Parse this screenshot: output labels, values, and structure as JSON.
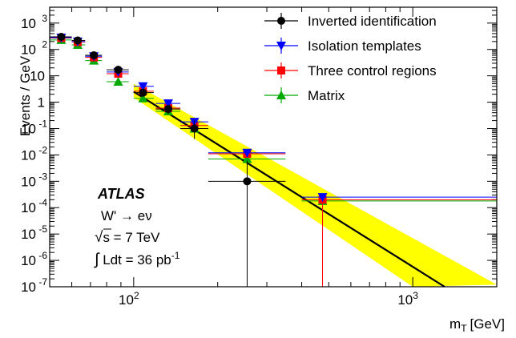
{
  "chart_data": {
    "type": "scatter",
    "xlabel": "m",
    "xlabel_sub": "T",
    "xlabel_unit": "[GeV]",
    "ylabel": "Events / GeV",
    "x_scale": "log",
    "y_scale": "log",
    "xlim": [
      50,
      2000
    ],
    "ylim": [
      1e-07,
      4000
    ],
    "x_ticks": [
      {
        "value": 100,
        "base": "10",
        "exp": "2"
      },
      {
        "value": 1000,
        "base": "10",
        "exp": "3"
      }
    ],
    "y_ticks": [
      {
        "value": 1e-07,
        "base": "10",
        "exp": "-7"
      },
      {
        "value": 1e-06,
        "base": "10",
        "exp": "-6"
      },
      {
        "value": 1e-05,
        "base": "10",
        "exp": "-5"
      },
      {
        "value": 0.0001,
        "base": "10",
        "exp": "-4"
      },
      {
        "value": 0.001,
        "base": "10",
        "exp": "-3"
      },
      {
        "value": 0.01,
        "base": "10",
        "exp": "-2"
      },
      {
        "value": 0.1,
        "base": "10",
        "exp": "-1"
      },
      {
        "value": 1,
        "base": "1",
        "exp": ""
      },
      {
        "value": 10,
        "base": "10",
        "exp": ""
      },
      {
        "value": 100,
        "base": "10",
        "exp": "2"
      },
      {
        "value": 1000,
        "base": "10",
        "exp": "3"
      }
    ],
    "legend_position": "top-right",
    "series": [
      {
        "name": "Inverted identification",
        "color": "#000000",
        "marker": "circle",
        "points": [
          {
            "x": 55,
            "y": 300,
            "x_lo": 50,
            "x_hi": 60,
            "y_lo": 250,
            "y_hi": 360
          },
          {
            "x": 63,
            "y": 220,
            "x_lo": 60,
            "x_hi": 67,
            "y_lo": 190,
            "y_hi": 260
          },
          {
            "x": 72,
            "y": 60,
            "x_lo": 67,
            "x_hi": 77,
            "y_lo": 50,
            "y_hi": 72
          },
          {
            "x": 88,
            "y": 17,
            "x_lo": 80,
            "x_hi": 96,
            "y_lo": 14,
            "y_hi": 20
          },
          {
            "x": 108,
            "y": 2.3,
            "x_lo": 100,
            "x_hi": 118,
            "y_lo": 1.7,
            "y_hi": 3.1
          },
          {
            "x": 133,
            "y": 0.55,
            "x_lo": 120,
            "x_hi": 147,
            "y_lo": 0.35,
            "y_hi": 0.8
          },
          {
            "x": 165,
            "y": 0.1,
            "x_lo": 147,
            "x_hi": 185,
            "y_lo": 0.04,
            "y_hi": 0.2
          },
          {
            "x": 255,
            "y": 0.001,
            "x_lo": 185,
            "x_hi": 350,
            "y_lo": 1e-07,
            "y_hi": 0.006
          }
        ]
      },
      {
        "name": "Isolation templates",
        "color": "#0000ff",
        "marker": "triangle-down",
        "points": [
          {
            "x": 55,
            "y": 280,
            "x_lo": 50,
            "x_hi": 60
          },
          {
            "x": 63,
            "y": 200,
            "x_lo": 60,
            "x_hi": 67
          },
          {
            "x": 72,
            "y": 55,
            "x_lo": 67,
            "x_hi": 77
          },
          {
            "x": 88,
            "y": 14,
            "x_lo": 80,
            "x_hi": 96
          },
          {
            "x": 108,
            "y": 4,
            "x_lo": 100,
            "x_hi": 118
          },
          {
            "x": 133,
            "y": 0.9,
            "x_lo": 120,
            "x_hi": 147
          },
          {
            "x": 165,
            "y": 0.18,
            "x_lo": 147,
            "x_hi": 185
          },
          {
            "x": 255,
            "y": 0.012,
            "x_lo": 185,
            "x_hi": 350
          },
          {
            "x": 475,
            "y": 0.00025,
            "x_lo": 400,
            "x_hi": 2000
          }
        ]
      },
      {
        "name": "Three control regions",
        "color": "#ff0000",
        "marker": "square",
        "points": [
          {
            "x": 55,
            "y": 270,
            "x_lo": 50,
            "x_hi": 60
          },
          {
            "x": 63,
            "y": 190,
            "x_lo": 60,
            "x_hi": 67
          },
          {
            "x": 72,
            "y": 50,
            "x_lo": 67,
            "x_hi": 77
          },
          {
            "x": 88,
            "y": 12,
            "x_lo": 80,
            "x_hi": 96
          },
          {
            "x": 108,
            "y": 2.6,
            "x_lo": 100,
            "x_hi": 118
          },
          {
            "x": 133,
            "y": 0.6,
            "x_lo": 120,
            "x_hi": 147
          },
          {
            "x": 165,
            "y": 0.13,
            "x_lo": 147,
            "x_hi": 185
          },
          {
            "x": 255,
            "y": 0.011,
            "x_lo": 185,
            "x_hi": 350
          },
          {
            "x": 475,
            "y": 0.0002,
            "x_lo": 400,
            "x_hi": 2000,
            "y_lo": 1e-07
          }
        ]
      },
      {
        "name": "Matrix",
        "color": "#00aa00",
        "marker": "triangle-up",
        "points": [
          {
            "x": 55,
            "y": 230,
            "x_lo": 50,
            "x_hi": 60
          },
          {
            "x": 63,
            "y": 150,
            "x_lo": 60,
            "x_hi": 67
          },
          {
            "x": 72,
            "y": 38,
            "x_lo": 67,
            "x_hi": 77
          },
          {
            "x": 88,
            "y": 6,
            "x_lo": 80,
            "x_hi": 96
          },
          {
            "x": 108,
            "y": 1.4,
            "x_lo": 100,
            "x_hi": 118
          },
          {
            "x": 133,
            "y": 0.45,
            "x_lo": 120,
            "x_hi": 147
          },
          {
            "x": 165,
            "y": 0.1,
            "x_lo": 147,
            "x_hi": 185
          },
          {
            "x": 255,
            "y": 0.007,
            "x_lo": 185,
            "x_hi": 350
          },
          {
            "x": 475,
            "y": 0.00018,
            "x_lo": 400,
            "x_hi": 2000
          }
        ]
      }
    ],
    "fit": {
      "color": "#000000",
      "band_color": "#ffff00",
      "line": [
        {
          "x": 100,
          "y": 2.5
        },
        {
          "x": 1300,
          "y": 1e-07
        }
      ],
      "band_upper": [
        {
          "x": 100,
          "y": 5
        },
        {
          "x": 2000,
          "y": 1.2e-07
        }
      ],
      "band_lower": [
        {
          "x": 100,
          "y": 1.5
        },
        {
          "x": 1000,
          "y": 1e-07
        }
      ]
    },
    "annotations": {
      "experiment": "ATLAS",
      "process": "W' → eν",
      "energy_sqrt": "√",
      "energy_rest": "s = 7 TeV",
      "lumi_integral": "∫",
      "lumi_text": " Ldt = 36 pb",
      "lumi_exp": "-1"
    }
  }
}
